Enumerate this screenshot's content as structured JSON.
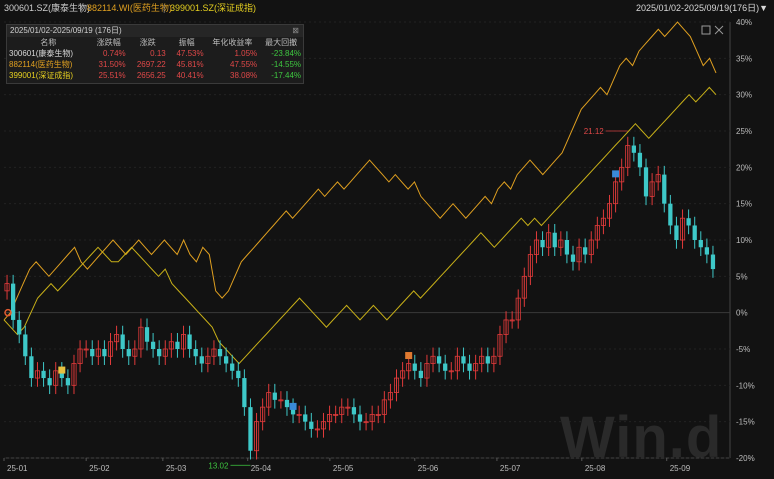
{
  "header": {
    "legend": [
      {
        "text": "300601.SZ(康泰生物)",
        "color": "#d8d8d8"
      },
      {
        "text": "882114.WI(医药生物)",
        "color": "#e0a020"
      },
      {
        "text": "399001.SZ(深证成指)",
        "color": "#e6d020"
      }
    ],
    "separator": "|",
    "range": "2025/01/02-2025/09/19(176日)▼"
  },
  "stats_panel": {
    "title": "2025/01/02-2025/09/19 (176日)",
    "columns": [
      "名称",
      "涨跌幅",
      "涨跌",
      "振幅",
      "年化收益率",
      "最大回撤"
    ],
    "rows": [
      {
        "name": "300601(康泰生物)",
        "color": "#d8d8d8",
        "cells": [
          "0.74%",
          "0.13",
          "47.53%",
          "1.05%",
          "-23.84%"
        ]
      },
      {
        "name": "882114(医药生物)",
        "color": "#e0a020",
        "cells": [
          "31.50%",
          "2697.22",
          "45.81%",
          "47.55%",
          "-14.55%"
        ]
      },
      {
        "name": "399001(深证成指)",
        "color": "#e6d020",
        "cells": [
          "25.51%",
          "2656.25",
          "40.41%",
          "38.08%",
          "-17.44%"
        ]
      }
    ]
  },
  "chart_data": {
    "type": "candlestick+line",
    "x_start": "2025-01-02",
    "x_end": "2025-09-19",
    "x_ticks": [
      "25-01",
      "25-02",
      "25-03",
      "25-04",
      "25-05",
      "25-06",
      "25-07",
      "25-08",
      "25-09"
    ],
    "y_ticks": [
      "40%",
      "35%",
      "30%",
      "25%",
      "20%",
      "15%",
      "10%",
      "5%",
      "0%",
      "-5%",
      "-10%",
      "-15%",
      "-20%"
    ],
    "ylim": [
      -20,
      40
    ],
    "annotations": {
      "high": "21.12",
      "low": "13.02"
    },
    "series": [
      {
        "ref": "300601.SZ",
        "kind": "candlestick",
        "up_color": "#e03a3a",
        "down_color": "#3ec8c8",
        "close_pct": [
          4,
          -1,
          -3,
          -6,
          -9,
          -8,
          -9,
          -10,
          -8,
          -9,
          -10,
          -7,
          -5,
          -5,
          -6,
          -5,
          -6,
          -4,
          -3,
          -5,
          -6,
          -5,
          -2,
          -4,
          -5,
          -6,
          -5,
          -4,
          -5,
          -3,
          -5,
          -6,
          -7,
          -6,
          -5,
          -6,
          -7,
          -8,
          -9,
          -13,
          -19,
          -15,
          -13,
          -11,
          -12,
          -12,
          -13,
          -14,
          -14,
          -15,
          -16,
          -16,
          -15,
          -14,
          -14,
          -13,
          -13,
          -14,
          -15,
          -15,
          -14,
          -14,
          -12,
          -11,
          -9,
          -8,
          -7,
          -8,
          -9,
          -7,
          -6,
          -7,
          -8,
          -8,
          -6,
          -7,
          -8,
          -7,
          -6,
          -7,
          -6,
          -3,
          -1,
          -1,
          2,
          5,
          8,
          10,
          9,
          11,
          9,
          10,
          8,
          7,
          9,
          8,
          10,
          12,
          13,
          15,
          18,
          20,
          23,
          22,
          20,
          16,
          18,
          19,
          15,
          12,
          10,
          13,
          12,
          10,
          9,
          8,
          6
        ],
        "highlight_markers": [
          {
            "label": "",
            "color": "#e6c040"
          },
          {
            "label": "",
            "color": "#3a8ad8"
          },
          {
            "label": "",
            "color": "#e07a30"
          },
          {
            "label": "",
            "color": "#3a8ad8"
          }
        ]
      },
      {
        "ref": "882114.WI",
        "kind": "line",
        "color": "#e0a020",
        "values": [
          -1,
          0,
          2,
          4,
          6,
          7,
          6,
          5,
          6,
          7,
          8,
          9,
          7,
          6,
          7,
          8,
          9,
          10,
          9,
          8,
          9,
          10,
          9,
          8,
          9,
          10,
          9,
          8,
          10,
          8,
          7,
          9,
          8,
          3,
          2,
          3,
          5,
          7,
          8,
          9,
          10,
          11,
          12,
          13,
          14,
          13,
          14,
          15,
          16,
          17,
          16,
          17,
          18,
          17,
          18,
          19,
          20,
          21,
          20,
          19,
          18,
          19,
          18,
          17,
          18,
          16,
          15,
          14,
          13,
          14,
          15,
          14,
          13,
          14,
          15,
          16,
          15,
          17,
          18,
          17,
          19,
          20,
          21,
          20,
          19,
          20,
          21,
          22,
          24,
          26,
          28,
          29,
          30,
          31,
          30,
          32,
          34,
          35,
          34,
          36,
          37,
          38,
          39,
          38,
          39,
          40,
          39,
          38,
          36,
          34,
          35,
          33
        ]
      },
      {
        "ref": "399001.SZ",
        "kind": "line",
        "color": "#c8b018",
        "values": [
          -1,
          -2,
          -3,
          -2,
          0,
          2,
          3,
          4,
          3,
          4,
          5,
          6,
          7,
          8,
          9,
          8,
          7,
          7,
          8,
          9,
          8,
          7,
          6,
          5,
          6,
          4,
          3,
          2,
          1,
          0,
          -1,
          -2,
          -4,
          -5,
          -6,
          -7,
          -6,
          -5,
          -4,
          -3,
          -2,
          -1,
          0,
          1,
          2,
          1,
          0,
          -1,
          -2,
          -1,
          0,
          1,
          0,
          -1,
          0,
          1,
          0,
          -1,
          0,
          1,
          2,
          3,
          2,
          3,
          4,
          5,
          6,
          7,
          8,
          9,
          10,
          11,
          10,
          9,
          10,
          11,
          12,
          13,
          12,
          13,
          12,
          13,
          14,
          15,
          16,
          17,
          18,
          19,
          20,
          21,
          22,
          23,
          24,
          25,
          26,
          25,
          24,
          25,
          26,
          27,
          28,
          29,
          30,
          29,
          30,
          31,
          30
        ]
      }
    ]
  },
  "watermark": "Win.d"
}
